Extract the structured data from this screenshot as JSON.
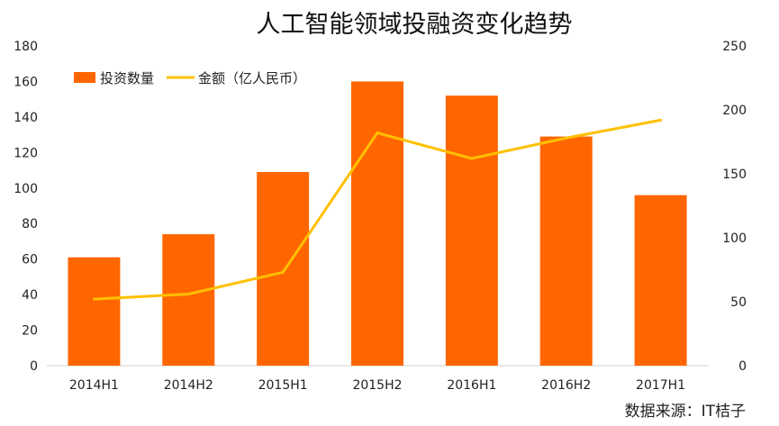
{
  "chart_data": {
    "type": "bar",
    "title": "人工智能领域投融资变化趋势",
    "source": "数据来源：IT桔子",
    "categories": [
      "2014H1",
      "2014H2",
      "2015H1",
      "2015H2",
      "2016H1",
      "2016H2",
      "2017H1"
    ],
    "series": [
      {
        "name": "投资数量",
        "type": "bar",
        "axis": "left",
        "color": "#FF6600",
        "values": [
          61,
          74,
          109,
          160,
          152,
          129,
          96
        ]
      },
      {
        "name": "金额（亿人民币）",
        "type": "line",
        "axis": "right",
        "color": "#FFC000",
        "values": [
          52,
          56,
          73,
          182,
          162,
          178,
          192
        ]
      }
    ],
    "y_left": {
      "min": 0,
      "max": 180,
      "ticks": [
        0,
        20,
        40,
        60,
        80,
        100,
        120,
        140,
        160,
        180
      ]
    },
    "y_right": {
      "min": 0,
      "max": 250,
      "ticks": [
        0,
        50,
        100,
        150,
        200,
        250
      ]
    },
    "grid": false,
    "legend_position": "top-left"
  }
}
